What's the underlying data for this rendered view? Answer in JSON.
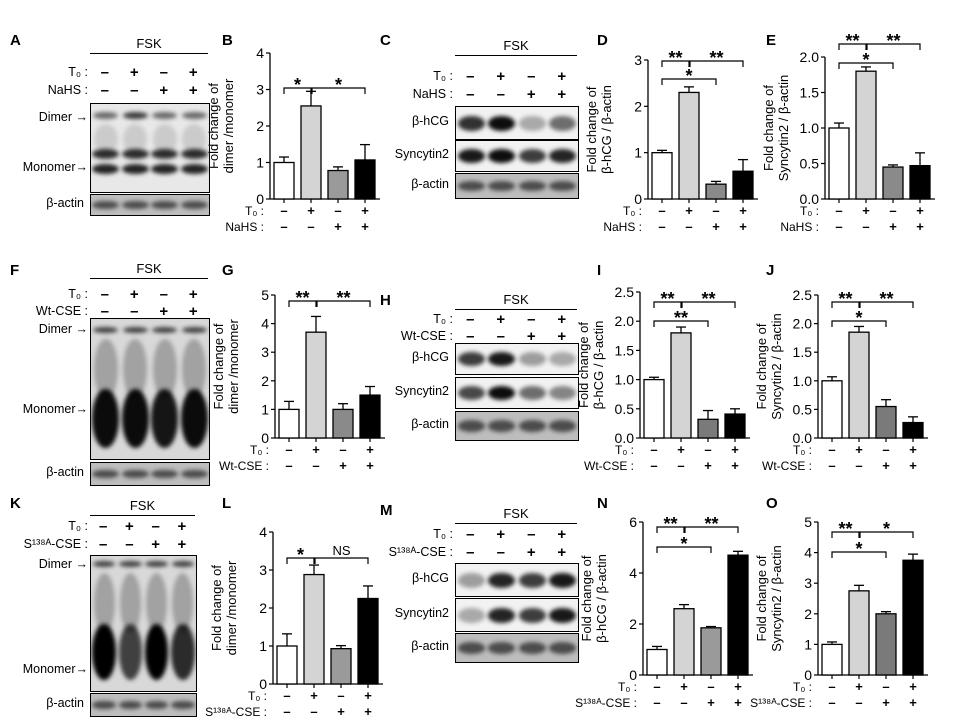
{
  "blots": [
    {
      "id": "A",
      "letter": "A",
      "header": "FSK",
      "rows": [
        {
          "label": "T₀ :",
          "signs": [
            "-",
            "+",
            "-",
            "+"
          ]
        },
        {
          "label": "NaHS :",
          "signs": [
            "-",
            "-",
            "+",
            "+"
          ]
        }
      ],
      "boxes": [
        {
          "label": ""
        },
        {
          "label": "β-actin"
        }
      ],
      "markers": [
        "Dimer →",
        "Monomer→"
      ]
    },
    {
      "id": "C",
      "letter": "C",
      "header": "FSK",
      "rows": [
        {
          "label": "T₀ :",
          "signs": [
            "-",
            "+",
            "-",
            "+"
          ]
        },
        {
          "label": "NaHS :",
          "signs": [
            "-",
            "-",
            "+",
            "+"
          ]
        }
      ],
      "boxes": [
        {
          "label": "β-hCG"
        },
        {
          "label": "Syncytin2"
        },
        {
          "label": "β-actin"
        }
      ],
      "markers": []
    },
    {
      "id": "F",
      "letter": "F",
      "header": "FSK",
      "rows": [
        {
          "label": "T₀ :",
          "signs": [
            "-",
            "+",
            "-",
            "+"
          ]
        },
        {
          "label": "Wt-CSE :",
          "signs": [
            "-",
            "-",
            "+",
            "+"
          ]
        }
      ],
      "boxes": [
        {
          "label": ""
        },
        {
          "label": "β-actin"
        }
      ],
      "markers": [
        "Dimer →",
        "Monomer→"
      ]
    },
    {
      "id": "H",
      "letter": "H",
      "header": "FSK",
      "rows": [
        {
          "label": "T₀ :",
          "signs": [
            "-",
            "+",
            "-",
            "+"
          ]
        },
        {
          "label": "Wt-CSE :",
          "signs": [
            "-",
            "-",
            "+",
            "+"
          ]
        }
      ],
      "boxes": [
        {
          "label": "β-hCG"
        },
        {
          "label": "Syncytin2"
        },
        {
          "label": "β-actin"
        }
      ],
      "markers": []
    },
    {
      "id": "K",
      "letter": "K",
      "header": "FSK",
      "rows": [
        {
          "label": "T₀ :",
          "signs": [
            "-",
            "+",
            "-",
            "+"
          ]
        },
        {
          "label": "S¹³⁸ᴬ-CSE :",
          "signs": [
            "-",
            "-",
            "+",
            "+"
          ]
        }
      ],
      "boxes": [
        {
          "label": ""
        },
        {
          "label": "β-actin"
        }
      ],
      "markers": [
        "Dimer →",
        "Monomer→"
      ]
    },
    {
      "id": "M",
      "letter": "M",
      "header": "FSK",
      "rows": [
        {
          "label": "T₀ :",
          "signs": [
            "-",
            "+",
            "-",
            "+"
          ]
        },
        {
          "label": "S¹³⁸ᴬ-CSE :",
          "signs": [
            "-",
            "-",
            "+",
            "+"
          ]
        }
      ],
      "boxes": [
        {
          "label": "β-hCG"
        },
        {
          "label": "Syncytin2"
        },
        {
          "label": "β-actin"
        }
      ],
      "markers": []
    }
  ],
  "chart_data": [
    {
      "id": "B",
      "letter": "B",
      "type": "bar",
      "ylabel": [
        "Fold change of",
        "dimer /monomer"
      ],
      "ylim": [
        0,
        4
      ],
      "yticks": [
        "0",
        "1",
        "2",
        "3",
        "4"
      ],
      "values": [
        1.0,
        2.55,
        0.78,
        1.07
      ],
      "errors": [
        0.15,
        0.4,
        0.1,
        0.42
      ],
      "bar_colors": [
        "#ffffff",
        "#d4d4d4",
        "#9a9a9a",
        "#000000"
      ],
      "brackets": [
        {
          "from": 0,
          "to": 1,
          "label": "*",
          "level": 0
        },
        {
          "from": 1,
          "to": 3,
          "label": "*",
          "level": 0
        }
      ],
      "treatments": [
        {
          "label": "T₀ :",
          "signs": [
            "-",
            "+",
            "-",
            "+"
          ]
        },
        {
          "label": "NaHS :",
          "signs": [
            "-",
            "-",
            "+",
            "+"
          ]
        }
      ]
    },
    {
      "id": "D",
      "letter": "D",
      "type": "bar",
      "ylabel": [
        "Fold change of",
        "β-hCG / β-actin"
      ],
      "ylim": [
        0,
        3
      ],
      "yticks": [
        "0",
        "1",
        "2",
        "3"
      ],
      "values": [
        1.0,
        2.3,
        0.32,
        0.6
      ],
      "errors": [
        0.05,
        0.12,
        0.06,
        0.25
      ],
      "bar_colors": [
        "#ffffff",
        "#d4d4d4",
        "#8a8a8a",
        "#000000"
      ],
      "brackets": [
        {
          "from": 0,
          "to": 1,
          "label": "**",
          "level": 0
        },
        {
          "from": 1,
          "to": 3,
          "label": "**",
          "level": 0
        },
        {
          "from": 0,
          "to": 2,
          "label": "*",
          "level": 1
        }
      ],
      "treatments": [
        {
          "label": "T₀ :",
          "signs": [
            "-",
            "+",
            "-",
            "+"
          ]
        },
        {
          "label": "NaHS :",
          "signs": [
            "-",
            "-",
            "+",
            "+"
          ]
        }
      ]
    },
    {
      "id": "E",
      "letter": "E",
      "type": "bar",
      "ylabel": [
        "Fold change of",
        "Syncytin2 / β-actin"
      ],
      "ylim": [
        0,
        2
      ],
      "yticks": [
        "0.0",
        "0.5",
        "1.0",
        "1.5",
        "2.0"
      ],
      "values": [
        1.0,
        1.8,
        0.45,
        0.47
      ],
      "errors": [
        0.07,
        0.06,
        0.03,
        0.18
      ],
      "bar_colors": [
        "#ffffff",
        "#d4d4d4",
        "#8a8a8a",
        "#000000"
      ],
      "brackets": [
        {
          "from": 0,
          "to": 1,
          "label": "**",
          "level": 0
        },
        {
          "from": 1,
          "to": 3,
          "label": "**",
          "level": 0
        },
        {
          "from": 0,
          "to": 2,
          "label": "*",
          "level": 1
        }
      ],
      "treatments": [
        {
          "label": "T₀ :",
          "signs": [
            "-",
            "+",
            "-",
            "+"
          ]
        },
        {
          "label": "NaHS :",
          "signs": [
            "-",
            "-",
            "+",
            "+"
          ]
        }
      ]
    },
    {
      "id": "G",
      "letter": "G",
      "type": "bar",
      "ylabel": [
        "Fold change of",
        "dimer /monomer"
      ],
      "ylim": [
        0,
        5
      ],
      "yticks": [
        "0",
        "1",
        "2",
        "3",
        "4",
        "5"
      ],
      "values": [
        1.0,
        3.7,
        1.0,
        1.5
      ],
      "errors": [
        0.28,
        0.55,
        0.2,
        0.3
      ],
      "bar_colors": [
        "#ffffff",
        "#d4d4d4",
        "#8a8a8a",
        "#000000"
      ],
      "brackets": [
        {
          "from": 0,
          "to": 1,
          "label": "**",
          "level": 0
        },
        {
          "from": 1,
          "to": 3,
          "label": "**",
          "level": 0
        }
      ],
      "treatments": [
        {
          "label": "T₀ :",
          "signs": [
            "-",
            "+",
            "-",
            "+"
          ]
        },
        {
          "label": "Wt-CSE :",
          "signs": [
            "-",
            "-",
            "+",
            "+"
          ]
        }
      ]
    },
    {
      "id": "I",
      "letter": "I",
      "type": "bar",
      "ylabel": [
        "Fold change of",
        "β-hCG / β-actin"
      ],
      "ylim": [
        0,
        2.5
      ],
      "yticks": [
        "0.0",
        "0.5",
        "1.0",
        "1.5",
        "2.0",
        "2.5"
      ],
      "values": [
        1.0,
        1.8,
        0.32,
        0.41
      ],
      "errors": [
        0.04,
        0.1,
        0.15,
        0.09
      ],
      "bar_colors": [
        "#ffffff",
        "#d4d4d4",
        "#7a7a7a",
        "#000000"
      ],
      "brackets": [
        {
          "from": 0,
          "to": 1,
          "label": "**",
          "level": 0
        },
        {
          "from": 1,
          "to": 3,
          "label": "**",
          "level": 0
        },
        {
          "from": 0,
          "to": 2,
          "label": "**",
          "level": 1
        }
      ],
      "treatments": [
        {
          "label": "T₀ :",
          "signs": [
            "-",
            "+",
            "-",
            "+"
          ]
        },
        {
          "label": "Wt-CSE :",
          "signs": [
            "-",
            "-",
            "+",
            "+"
          ]
        }
      ]
    },
    {
      "id": "J",
      "letter": "J",
      "type": "bar",
      "ylabel": [
        "Fold change of",
        "Syncytin2 / β-actin"
      ],
      "ylim": [
        0,
        2.5
      ],
      "yticks": [
        "0.0",
        "0.5",
        "1.0",
        "1.5",
        "2.0",
        "2.5"
      ],
      "values": [
        1.0,
        1.85,
        0.55,
        0.27
      ],
      "errors": [
        0.07,
        0.1,
        0.12,
        0.1
      ],
      "bar_colors": [
        "#ffffff",
        "#d4d4d4",
        "#7a7a7a",
        "#000000"
      ],
      "brackets": [
        {
          "from": 0,
          "to": 1,
          "label": "**",
          "level": 0
        },
        {
          "from": 1,
          "to": 3,
          "label": "**",
          "level": 0
        },
        {
          "from": 0,
          "to": 2,
          "label": "*",
          "level": 1
        }
      ],
      "treatments": [
        {
          "label": "T₀ :",
          "signs": [
            "-",
            "+",
            "-",
            "+"
          ]
        },
        {
          "label": "Wt-CSE :",
          "signs": [
            "-",
            "-",
            "+",
            "+"
          ]
        }
      ]
    },
    {
      "id": "L",
      "letter": "L",
      "type": "bar",
      "ylabel": [
        "Fold change of",
        "dimer /monomer"
      ],
      "ylim": [
        0,
        4
      ],
      "yticks": [
        "0",
        "1",
        "2",
        "3",
        "4"
      ],
      "values": [
        1.0,
        2.88,
        0.93,
        2.25
      ],
      "errors": [
        0.32,
        0.25,
        0.08,
        0.33
      ],
      "bar_colors": [
        "#ffffff",
        "#d4d4d4",
        "#9a9a9a",
        "#000000"
      ],
      "brackets": [
        {
          "from": 0,
          "to": 1,
          "label": "*",
          "level": 0
        },
        {
          "from": 1,
          "to": 3,
          "label": "NS",
          "level": 0
        }
      ],
      "treatments": [
        {
          "label": "T₀ :",
          "signs": [
            "-",
            "+",
            "-",
            "+"
          ]
        },
        {
          "label": "S¹³⁸ᴬ-CSE :",
          "signs": [
            "-",
            "-",
            "+",
            "+"
          ]
        }
      ]
    },
    {
      "id": "N",
      "letter": "N",
      "type": "bar",
      "ylabel": [
        "Fold change of",
        "β-hCG / β-actin"
      ],
      "ylim": [
        0,
        6
      ],
      "yticks": [
        "0",
        "2",
        "4",
        "6"
      ],
      "values": [
        1.0,
        2.6,
        1.85,
        4.7
      ],
      "errors": [
        0.12,
        0.16,
        0.05,
        0.15
      ],
      "bar_colors": [
        "#ffffff",
        "#d4d4d4",
        "#9a9a9a",
        "#000000"
      ],
      "brackets": [
        {
          "from": 0,
          "to": 1,
          "label": "**",
          "level": 0
        },
        {
          "from": 1,
          "to": 3,
          "label": "**",
          "level": 0
        },
        {
          "from": 0,
          "to": 2,
          "label": "*",
          "level": 1
        }
      ],
      "treatments": [
        {
          "label": "T₀ :",
          "signs": [
            "-",
            "+",
            "-",
            "+"
          ]
        },
        {
          "label": "S¹³⁸ᴬ-CSE :",
          "signs": [
            "-",
            "-",
            "+",
            "+"
          ]
        }
      ]
    },
    {
      "id": "O",
      "letter": "O",
      "type": "bar",
      "ylabel": [
        "Fold change of",
        "Syncytin2 / β-actin"
      ],
      "ylim": [
        0,
        5
      ],
      "yticks": [
        "0",
        "1",
        "2",
        "3",
        "4",
        "5"
      ],
      "values": [
        1.0,
        2.75,
        2.0,
        3.75
      ],
      "errors": [
        0.08,
        0.18,
        0.07,
        0.2
      ],
      "bar_colors": [
        "#ffffff",
        "#d4d4d4",
        "#7a7a7a",
        "#000000"
      ],
      "brackets": [
        {
          "from": 0,
          "to": 1,
          "label": "**",
          "level": 0
        },
        {
          "from": 1,
          "to": 3,
          "label": "*",
          "level": 0
        },
        {
          "from": 0,
          "to": 2,
          "label": "*",
          "level": 1
        }
      ],
      "treatments": [
        {
          "label": "T₀ :",
          "signs": [
            "-",
            "+",
            "-",
            "+"
          ]
        },
        {
          "label": "S¹³⁸ᴬ-CSE :",
          "signs": [
            "-",
            "-",
            "+",
            "+"
          ]
        }
      ]
    }
  ]
}
